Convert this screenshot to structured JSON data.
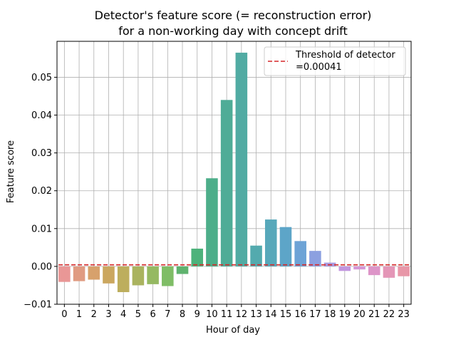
{
  "chart_data": {
    "type": "bar",
    "title_lines": [
      "Detector's feature score (= reconstruction error)",
      "for a non-working day with concept drift"
    ],
    "xlabel": "Hour of day",
    "ylabel": "Feature score",
    "categories": [
      "0",
      "1",
      "2",
      "3",
      "4",
      "5",
      "6",
      "7",
      "8",
      "9",
      "10",
      "11",
      "12",
      "13",
      "14",
      "15",
      "16",
      "17",
      "18",
      "19",
      "20",
      "21",
      "22",
      "23"
    ],
    "values": [
      -0.0041,
      -0.0039,
      -0.0035,
      -0.0045,
      -0.0068,
      -0.005,
      -0.0047,
      -0.0052,
      -0.002,
      0.0047,
      0.0233,
      0.044,
      0.0565,
      0.0055,
      0.0124,
      0.0104,
      0.0067,
      0.0041,
      0.001,
      -0.0012,
      -0.0008,
      -0.0023,
      -0.003,
      -0.0026
    ],
    "colors": [
      "#e99796",
      "#e09b82",
      "#d7a16c",
      "#cba75f",
      "#bdae5d",
      "#aab35f",
      "#95b962",
      "#7fbd66",
      "#5fb26e",
      "#4db27b",
      "#4dae8a",
      "#4fac97",
      "#51aba3",
      "#53aaae",
      "#57a8ba",
      "#5da5c8",
      "#6da3d6",
      "#8ca0e0",
      "#a99be0",
      "#c296df",
      "#d596d6",
      "#dd95c8",
      "#e496b7",
      "#e897a8"
    ],
    "yticks": [
      -0.01,
      0.0,
      0.01,
      0.02,
      0.03,
      0.04,
      0.05
    ],
    "ytick_labels": [
      "−0.01",
      "0.00",
      "0.01",
      "0.02",
      "0.03",
      "0.04",
      "0.05"
    ],
    "ylim": [
      -0.01,
      0.0595
    ],
    "threshold": {
      "value": 0.00041,
      "color": "#d62728",
      "label_lines": [
        "Threshold of detector",
        "=0.00041"
      ]
    },
    "grid": true,
    "legend_position": "top-right"
  }
}
